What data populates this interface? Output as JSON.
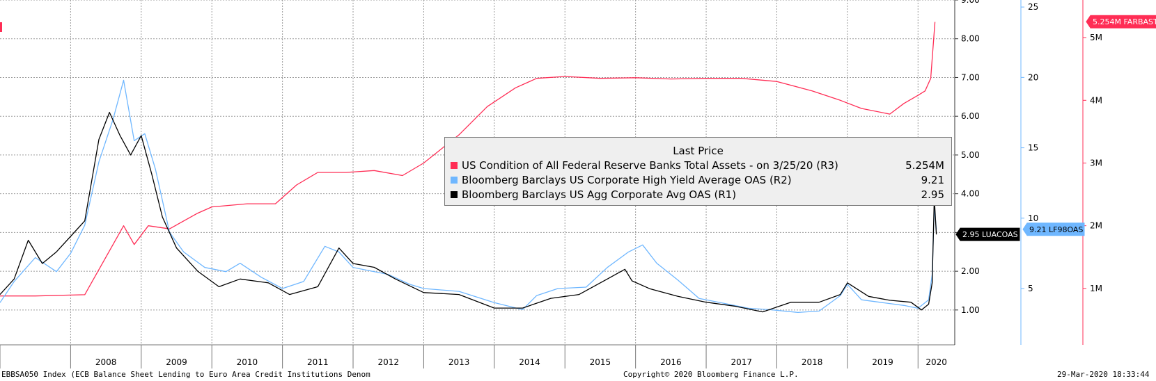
{
  "chart_data": {
    "type": "line",
    "legend_title": "Last Price",
    "x_tick_labels": [
      "2008",
      "2009",
      "2010",
      "2011",
      "2012",
      "2013",
      "2014",
      "2015",
      "2016",
      "2017",
      "2018",
      "2019",
      "2020"
    ],
    "series": [
      {
        "name": "US Condition of All Federal Reserve Banks Total Assets -  on 3/25/20  (R3)",
        "last_value": "5.254M",
        "axis": "R3",
        "color": "#ff2d55",
        "tag": "5.254M FARBAST",
        "points": [
          [
            2007.0,
            0.88
          ],
          [
            2007.5,
            0.88
          ],
          [
            2008.2,
            0.9
          ],
          [
            2008.75,
            2.0
          ],
          [
            2008.9,
            1.7
          ],
          [
            2009.1,
            2.0
          ],
          [
            2009.4,
            1.95
          ],
          [
            2009.8,
            2.2
          ],
          [
            2010.0,
            2.3
          ],
          [
            2010.5,
            2.35
          ],
          [
            2010.9,
            2.35
          ],
          [
            2011.2,
            2.65
          ],
          [
            2011.5,
            2.85
          ],
          [
            2011.9,
            2.85
          ],
          [
            2012.3,
            2.88
          ],
          [
            2012.7,
            2.8
          ],
          [
            2013.0,
            3.0
          ],
          [
            2013.5,
            3.45
          ],
          [
            2013.9,
            3.9
          ],
          [
            2014.3,
            4.2
          ],
          [
            2014.6,
            4.35
          ],
          [
            2015.0,
            4.38
          ],
          [
            2015.5,
            4.35
          ],
          [
            2016.0,
            4.36
          ],
          [
            2016.5,
            4.34
          ],
          [
            2017.0,
            4.35
          ],
          [
            2017.5,
            4.35
          ],
          [
            2018.0,
            4.3
          ],
          [
            2018.5,
            4.15
          ],
          [
            2018.9,
            4.0
          ],
          [
            2019.2,
            3.87
          ],
          [
            2019.6,
            3.78
          ],
          [
            2019.8,
            3.95
          ],
          [
            2020.0,
            4.08
          ],
          [
            2020.1,
            4.15
          ],
          [
            2020.18,
            4.35
          ],
          [
            2020.24,
            5.25
          ]
        ]
      },
      {
        "name": "Bloomberg Barclays US Corporate High Yield Average OAS  (R2)",
        "last_value": "9.21",
        "axis": "R2",
        "color": "#6fb7ff",
        "tag": "9.21 LF98OAS",
        "points": [
          [
            2007.0,
            4.0
          ],
          [
            2007.2,
            5.5
          ],
          [
            2007.5,
            7.2
          ],
          [
            2007.8,
            6.2
          ],
          [
            2008.0,
            7.5
          ],
          [
            2008.2,
            9.5
          ],
          [
            2008.4,
            14.0
          ],
          [
            2008.6,
            17.0
          ],
          [
            2008.75,
            19.8
          ],
          [
            2008.9,
            15.5
          ],
          [
            2009.05,
            16.0
          ],
          [
            2009.2,
            13.5
          ],
          [
            2009.4,
            9.0
          ],
          [
            2009.6,
            7.6
          ],
          [
            2009.9,
            6.5
          ],
          [
            2010.2,
            6.2
          ],
          [
            2010.4,
            6.8
          ],
          [
            2010.7,
            5.8
          ],
          [
            2011.0,
            5.0
          ],
          [
            2011.3,
            5.5
          ],
          [
            2011.6,
            8.0
          ],
          [
            2011.8,
            7.6
          ],
          [
            2012.0,
            6.5
          ],
          [
            2012.5,
            6.0
          ],
          [
            2012.8,
            5.3
          ],
          [
            2013.0,
            5.0
          ],
          [
            2013.5,
            4.8
          ],
          [
            2014.0,
            4.0
          ],
          [
            2014.4,
            3.5
          ],
          [
            2014.6,
            4.5
          ],
          [
            2014.9,
            5.0
          ],
          [
            2015.3,
            5.1
          ],
          [
            2015.6,
            6.5
          ],
          [
            2015.9,
            7.6
          ],
          [
            2016.1,
            8.1
          ],
          [
            2016.3,
            6.8
          ],
          [
            2016.6,
            5.6
          ],
          [
            2016.9,
            4.3
          ],
          [
            2017.3,
            3.9
          ],
          [
            2017.6,
            3.6
          ],
          [
            2017.9,
            3.5
          ],
          [
            2018.3,
            3.3
          ],
          [
            2018.6,
            3.4
          ],
          [
            2018.9,
            4.5
          ],
          [
            2019.0,
            5.3
          ],
          [
            2019.2,
            4.2
          ],
          [
            2019.5,
            4.0
          ],
          [
            2019.8,
            3.8
          ],
          [
            2020.0,
            3.6
          ],
          [
            2020.15,
            4.2
          ],
          [
            2020.2,
            6.0
          ],
          [
            2020.23,
            10.8
          ],
          [
            2020.26,
            9.21
          ]
        ]
      },
      {
        "name": "Bloomberg Barclays US Agg Corporate Avg OAS  (R1)",
        "last_value": "2.95",
        "axis": "R1",
        "color": "#000000",
        "tag": "2.95 LUACOAS",
        "points": [
          [
            2007.0,
            1.4
          ],
          [
            2007.2,
            1.8
          ],
          [
            2007.4,
            2.8
          ],
          [
            2007.6,
            2.2
          ],
          [
            2007.8,
            2.5
          ],
          [
            2008.0,
            2.9
          ],
          [
            2008.2,
            3.3
          ],
          [
            2008.4,
            5.4
          ],
          [
            2008.55,
            6.1
          ],
          [
            2008.7,
            5.5
          ],
          [
            2008.85,
            5.0
          ],
          [
            2009.0,
            5.5
          ],
          [
            2009.15,
            4.5
          ],
          [
            2009.3,
            3.4
          ],
          [
            2009.5,
            2.6
          ],
          [
            2009.8,
            2.0
          ],
          [
            2010.1,
            1.6
          ],
          [
            2010.4,
            1.8
          ],
          [
            2010.8,
            1.7
          ],
          [
            2011.1,
            1.4
          ],
          [
            2011.5,
            1.6
          ],
          [
            2011.8,
            2.6
          ],
          [
            2012.0,
            2.2
          ],
          [
            2012.3,
            2.1
          ],
          [
            2012.6,
            1.8
          ],
          [
            2013.0,
            1.45
          ],
          [
            2013.5,
            1.4
          ],
          [
            2014.0,
            1.05
          ],
          [
            2014.4,
            1.05
          ],
          [
            2014.8,
            1.3
          ],
          [
            2015.2,
            1.4
          ],
          [
            2015.6,
            1.8
          ],
          [
            2015.85,
            2.05
          ],
          [
            2015.95,
            1.75
          ],
          [
            2016.2,
            1.55
          ],
          [
            2016.6,
            1.35
          ],
          [
            2017.0,
            1.2
          ],
          [
            2017.4,
            1.1
          ],
          [
            2017.8,
            0.95
          ],
          [
            2018.2,
            1.2
          ],
          [
            2018.6,
            1.2
          ],
          [
            2018.9,
            1.4
          ],
          [
            2019.0,
            1.7
          ],
          [
            2019.3,
            1.35
          ],
          [
            2019.6,
            1.25
          ],
          [
            2019.9,
            1.2
          ],
          [
            2020.05,
            1.0
          ],
          [
            2020.15,
            1.15
          ],
          [
            2020.2,
            1.7
          ],
          [
            2020.23,
            3.9
          ],
          [
            2020.26,
            2.95
          ]
        ]
      }
    ],
    "axes": {
      "R1": {
        "ylim": [
          0.1,
          9.0
        ],
        "tick_values": [
          1.0,
          2.0,
          3.0,
          4.0,
          5.0,
          6.0,
          7.0,
          8.0,
          9.0
        ],
        "tick_labels": [
          "1.00",
          "2.00",
          "3.00",
          "4.00",
          "5.00",
          "6.00",
          "7.00",
          "8.00",
          "9.00"
        ]
      },
      "R2": {
        "ylim": [
          1,
          25.5
        ],
        "tick_values": [
          5,
          10,
          15,
          20,
          25
        ],
        "tick_labels": [
          "5",
          "10",
          "15",
          "20",
          "25"
        ]
      },
      "R3": {
        "ylim": [
          0.1,
          5.6
        ],
        "tick_values": [
          1,
          2,
          3,
          4,
          5
        ],
        "tick_labels": [
          "1M",
          "2M",
          "3M",
          "4M",
          "5M"
        ]
      }
    },
    "xlim": [
      2007.0,
      2020.52
    ],
    "grid": true
  },
  "footer": {
    "left": "EBBSA050 Index (ECB Balance Sheet Lending to Euro Area Credit Institutions Denom",
    "center": "Copyright© 2020 Bloomberg Finance L.P.",
    "right": "29-Mar-2020 18:33:44"
  },
  "colors": {
    "grid": "#9a9a9a",
    "axis_r2": "#6fb7ff",
    "axis_r3": "#ff2d55"
  }
}
